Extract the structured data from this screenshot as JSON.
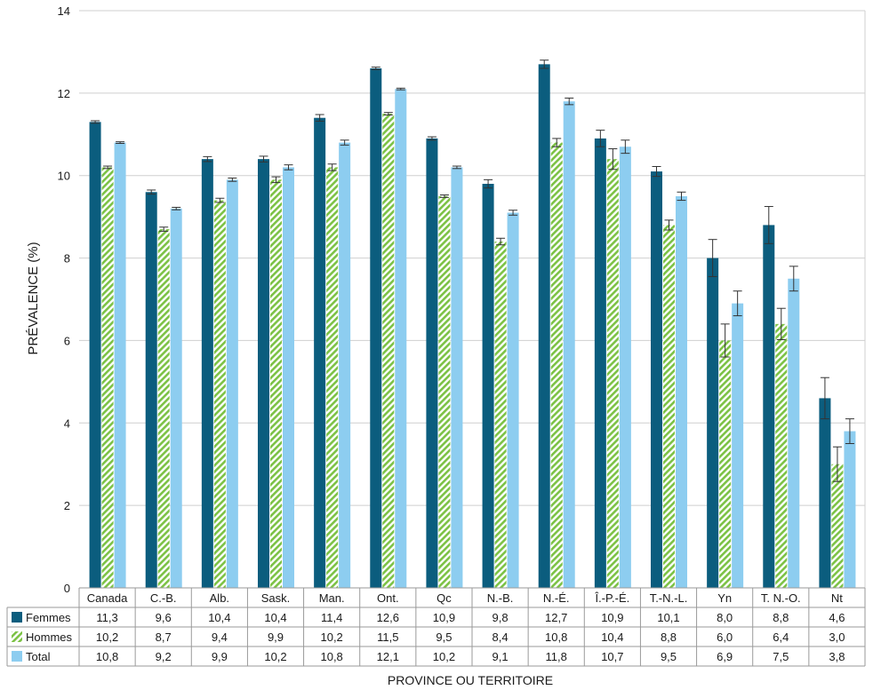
{
  "chart_data": {
    "type": "bar",
    "ylabel": "PRÉVALENCE (%)",
    "xlabel": "PROVINCE OU TERRITOIRE",
    "ylim": [
      0,
      14
    ],
    "yticks": [
      0,
      2,
      4,
      6,
      8,
      10,
      12,
      14
    ],
    "grid": true,
    "legend": "table-below",
    "categories": [
      "Canada",
      "C.-B.",
      "Alb.",
      "Sask.",
      "Man.",
      "Ont.",
      "Qc",
      "N.-B.",
      "N.-É.",
      "Î.-P.-É.",
      "T.-N.-L.",
      "Yn",
      "T. N.-O.",
      "Nt"
    ],
    "series": [
      {
        "name": "Femmes",
        "color": "#0b5d7e",
        "pattern": "solid",
        "values": [
          11.3,
          9.6,
          10.4,
          10.4,
          11.4,
          12.6,
          10.9,
          9.8,
          12.7,
          10.9,
          10.1,
          8.0,
          8.8,
          4.6
        ],
        "labels": [
          "11,3",
          "9,6",
          "10,4",
          "10,4",
          "11,4",
          "12,6",
          "10,9",
          "9,8",
          "12,7",
          "10,9",
          "10,1",
          "8,0",
          "8,8",
          "4,6"
        ],
        "err": [
          0.03,
          0.05,
          0.06,
          0.07,
          0.08,
          0.03,
          0.04,
          0.1,
          0.1,
          0.2,
          0.12,
          0.45,
          0.45,
          0.5
        ]
      },
      {
        "name": "Hommes",
        "color": "#7cc245",
        "pattern": "hatch",
        "values": [
          10.2,
          8.7,
          9.4,
          9.9,
          10.2,
          11.5,
          9.5,
          8.4,
          10.8,
          10.4,
          8.8,
          6.0,
          6.4,
          3.0
        ],
        "labels": [
          "10,2",
          "8,7",
          "9,4",
          "9,9",
          "10,2",
          "11,5",
          "9,5",
          "8,4",
          "10,8",
          "10,4",
          "8,8",
          "6,0",
          "6,4",
          "3,0"
        ],
        "err": [
          0.03,
          0.05,
          0.05,
          0.07,
          0.08,
          0.03,
          0.03,
          0.08,
          0.1,
          0.25,
          0.12,
          0.4,
          0.38,
          0.42
        ]
      },
      {
        "name": "Total",
        "color": "#8dcdf0",
        "pattern": "solid",
        "values": [
          10.8,
          9.2,
          9.9,
          10.2,
          10.8,
          12.1,
          10.2,
          9.1,
          11.8,
          10.7,
          9.5,
          6.9,
          7.5,
          3.8
        ],
        "labels": [
          "10,8",
          "9,2",
          "9,9",
          "10,2",
          "10,8",
          "12,1",
          "10,2",
          "9,1",
          "11,8",
          "10,7",
          "9,5",
          "6,9",
          "7,5",
          "3,8"
        ],
        "err": [
          0.02,
          0.03,
          0.04,
          0.06,
          0.06,
          0.02,
          0.03,
          0.06,
          0.08,
          0.16,
          0.1,
          0.3,
          0.3,
          0.3
        ]
      }
    ]
  }
}
